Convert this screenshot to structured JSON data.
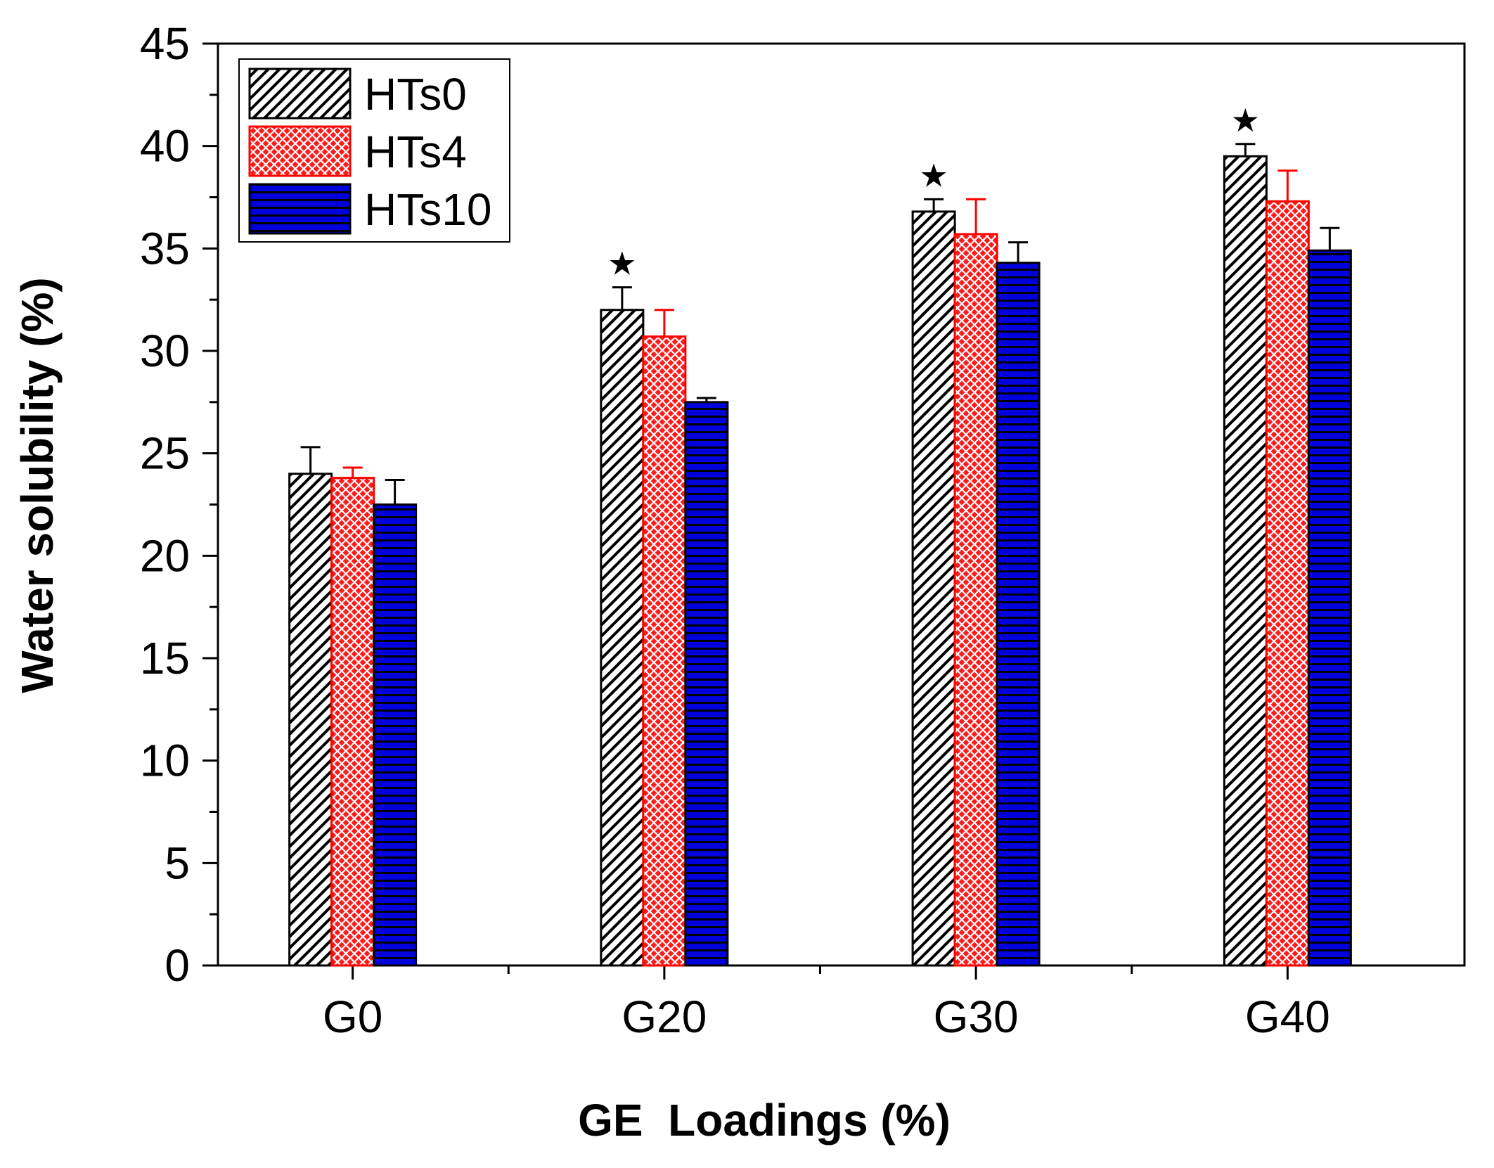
{
  "chart_data": {
    "type": "bar",
    "title": "",
    "xlabel": "GE  Loadings (%)",
    "ylabel": "Water solubility (%)",
    "ylim": [
      0,
      45
    ],
    "yticks": [
      "0",
      "5",
      "10",
      "15",
      "20",
      "25",
      "30",
      "35",
      "40",
      "45"
    ],
    "categories": [
      "G0",
      "G20",
      "G30",
      "G40"
    ],
    "series": [
      {
        "name": "HTs0",
        "values": [
          24.0,
          32.0,
          36.8,
          39.5
        ],
        "errors": [
          1.3,
          1.1,
          0.6,
          0.6
        ],
        "color": "#ffffff",
        "pattern": "diagonal-hatch",
        "stroke": "#000000"
      },
      {
        "name": "HTs4",
        "values": [
          23.8,
          30.7,
          35.7,
          37.3
        ],
        "errors": [
          0.5,
          1.3,
          1.7,
          1.5
        ],
        "color": "#ff1a1a",
        "pattern": "crosshatch",
        "stroke": "#ff0000"
      },
      {
        "name": "HTs10",
        "values": [
          22.5,
          27.5,
          34.3,
          34.9
        ],
        "errors": [
          1.2,
          0.2,
          1.0,
          1.1
        ],
        "color": "#0000dd",
        "pattern": "horizontal-lines",
        "stroke": "#000000"
      }
    ],
    "annotations": [
      {
        "text": "★",
        "category": "G20",
        "series": "HTs0"
      },
      {
        "text": "★",
        "category": "G30",
        "series": "HTs0"
      },
      {
        "text": "★",
        "category": "G40",
        "series": "HTs0"
      }
    ],
    "legend_position": "top-left",
    "grid": false
  }
}
